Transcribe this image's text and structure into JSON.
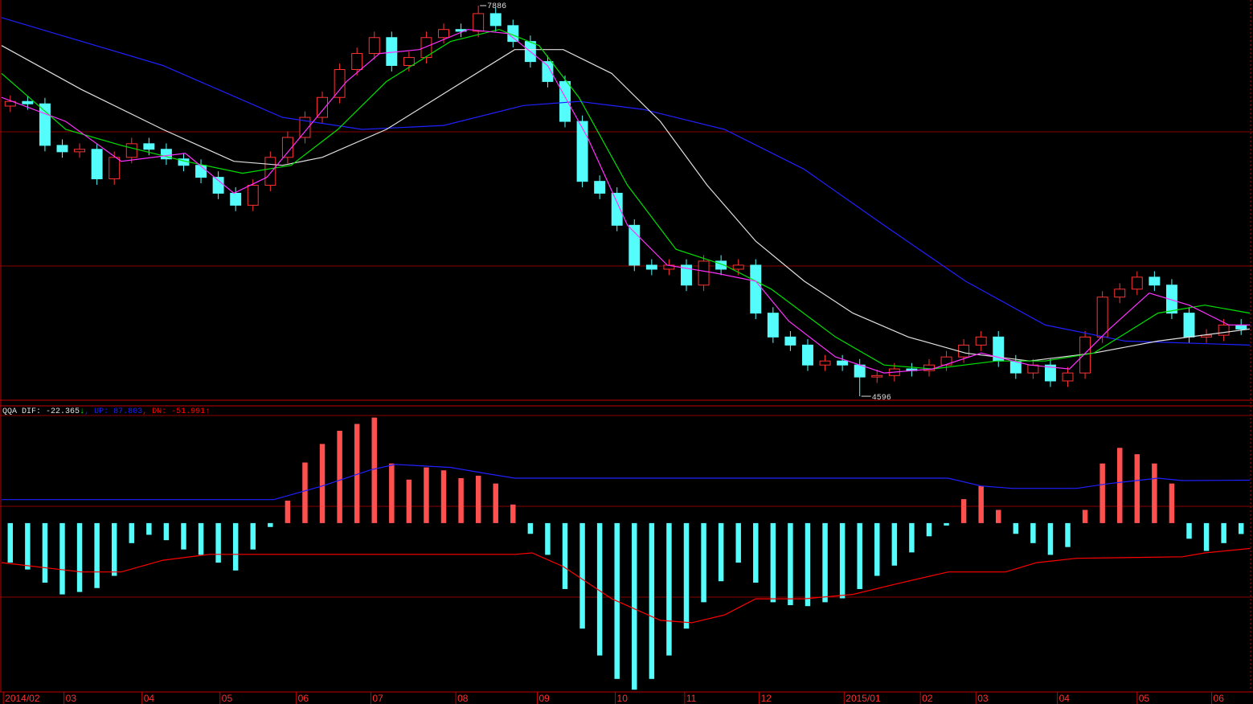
{
  "chart_data": [
    {
      "type": "candlestick",
      "xlim": [
        0,
        72
      ],
      "ylim": [
        4576,
        7920
      ],
      "up_color": "#ff3232",
      "down_color": "#54fcfc",
      "open": [
        7040,
        7079,
        7059,
        6709,
        6655,
        6676,
        6427,
        6608,
        6723,
        6676,
        6595,
        6541,
        6440,
        6306,
        6205,
        6373,
        6608,
        6776,
        6945,
        7113,
        7348,
        7483,
        7617,
        7382,
        7449,
        7617,
        7685,
        7670,
        7819,
        7718,
        7584,
        7415,
        7247,
        6911,
        6406,
        6306,
        6036,
        5700,
        5666,
        5700,
        5532,
        5734,
        5666,
        5700,
        5296,
        5095,
        5027,
        4859,
        4893,
        4859,
        4758,
        4770,
        4826,
        4812,
        4859,
        4927,
        5027,
        5095,
        4893,
        4792,
        4859,
        4725,
        4792,
        5095,
        5431,
        5498,
        5599,
        5532,
        5296,
        5095,
        5110,
        5196
      ],
      "high": [
        7129,
        7129,
        7109,
        6759,
        6726,
        6726,
        6658,
        6773,
        6773,
        6726,
        6645,
        6591,
        6490,
        6356,
        6423,
        6658,
        6826,
        6995,
        7163,
        7398,
        7533,
        7667,
        7667,
        7499,
        7667,
        7735,
        7735,
        7886,
        7869,
        7768,
        7634,
        7465,
        7297,
        6961,
        6456,
        6356,
        6086,
        5750,
        5750,
        5750,
        5784,
        5784,
        5750,
        5750,
        5346,
        5145,
        5077,
        4943,
        4943,
        4909,
        4820,
        4876,
        4876,
        4909,
        4977,
        5077,
        5145,
        5145,
        4943,
        4909,
        4909,
        4842,
        5145,
        5481,
        5548,
        5649,
        5649,
        5582,
        5346,
        5160,
        5246,
        5246
      ],
      "low": [
        6990,
        7009,
        6659,
        6605,
        6605,
        6377,
        6377,
        6558,
        6626,
        6545,
        6491,
        6390,
        6256,
        6155,
        6155,
        6323,
        6558,
        6726,
        6895,
        7063,
        7298,
        7433,
        7332,
        7332,
        7399,
        7567,
        7620,
        7620,
        7668,
        7534,
        7365,
        7197,
        6861,
        6356,
        6256,
        5986,
        5650,
        5616,
        5616,
        5482,
        5482,
        5616,
        5616,
        5246,
        5045,
        4977,
        4809,
        4809,
        4809,
        4596,
        4708,
        4720,
        4762,
        4762,
        4809,
        4877,
        4977,
        4843,
        4742,
        4742,
        4675,
        4675,
        4742,
        5045,
        5381,
        5448,
        5482,
        5246,
        5045,
        5045,
        5060,
        5112
      ],
      "close": [
        7079,
        7059,
        6709,
        6655,
        6676,
        6427,
        6608,
        6723,
        6676,
        6595,
        6541,
        6440,
        6306,
        6205,
        6373,
        6608,
        6776,
        6945,
        7113,
        7348,
        7483,
        7617,
        7382,
        7449,
        7617,
        7685,
        7670,
        7819,
        7718,
        7584,
        7415,
        7247,
        6911,
        6406,
        6306,
        6036,
        5700,
        5666,
        5700,
        5532,
        5734,
        5666,
        5700,
        5296,
        5095,
        5027,
        4859,
        4893,
        4859,
        4758,
        4770,
        4826,
        4812,
        4859,
        4927,
        5027,
        5095,
        4893,
        4792,
        4859,
        4725,
        4792,
        5095,
        5431,
        5498,
        5599,
        5532,
        5296,
        5095,
        5110,
        5196,
        5162
      ],
      "series": [
        {
          "color": "#2020ff",
          "x": [
            0,
            9.3,
            16.2,
            20.8,
            25.5,
            30.1,
            33.3,
            37,
            41.7,
            46.3,
            50.9,
            55.6,
            60.2,
            64.8,
            72
          ],
          "values": [
            7785,
            7382,
            6945,
            6844,
            6877,
            7045,
            7079,
            7012,
            6844,
            6507,
            6036,
            5565,
            5196,
            5061,
            5027
          ]
        },
        {
          "color": "#e0e0e0",
          "x": [
            0,
            4.6,
            9.3,
            13.4,
            16.2,
            18.5,
            22.2,
            25.9,
            29.6,
            32.4,
            35.2,
            38,
            40.7,
            43.5,
            46.3,
            49.1,
            52.3,
            55.6,
            59.3,
            63,
            66.7,
            72
          ],
          "values": [
            7550,
            7180,
            6844,
            6575,
            6541,
            6608,
            6844,
            7180,
            7516,
            7516,
            7315,
            6911,
            6373,
            5902,
            5565,
            5296,
            5095,
            4960,
            4893,
            4960,
            5061,
            5162
          ]
        },
        {
          "color": "#00e000",
          "x": [
            0,
            3.7,
            6.9,
            10.6,
            13.9,
            16.7,
            19.4,
            22.2,
            25.9,
            28.7,
            31,
            33.3,
            36.1,
            38.9,
            41.7,
            44.4,
            48.1,
            50.9,
            53.7,
            57.4,
            60.2,
            63,
            66.7,
            69.4,
            72
          ],
          "values": [
            7315,
            6844,
            6709,
            6575,
            6474,
            6541,
            6844,
            7247,
            7584,
            7685,
            7550,
            7113,
            6373,
            5834,
            5700,
            5498,
            5095,
            4859,
            4826,
            4893,
            4893,
            4960,
            5296,
            5363,
            5296
          ]
        },
        {
          "color": "#ff30ff",
          "x": [
            0,
            3.7,
            6.9,
            10.6,
            13.4,
            15.3,
            17.6,
            19.9,
            21.8,
            24.1,
            26.9,
            29.2,
            31.5,
            33.8,
            36.1,
            38.4,
            41.2,
            43.5,
            45.4,
            48.1,
            50.9,
            53.7,
            56.5,
            59.3,
            61.6,
            63.9,
            66.2,
            68.5,
            70.8,
            72
          ],
          "values": [
            7113,
            6911,
            6575,
            6642,
            6306,
            6440,
            6844,
            7247,
            7483,
            7516,
            7685,
            7651,
            7382,
            6776,
            6036,
            5700,
            5633,
            5565,
            5229,
            4927,
            4792,
            4826,
            4960,
            4859,
            4826,
            5162,
            5465,
            5363,
            5196,
            5196
          ]
        }
      ]
    },
    {
      "type": "bar",
      "title": "QQA",
      "separator": ",",
      "xlim": [
        0,
        72
      ],
      "ylim": [
        -344,
        240
      ],
      "xticks": [
        {
          "value": 0.1,
          "label": "2014/02"
        },
        {
          "value": 3.6,
          "label": "03"
        },
        {
          "value": 8.1,
          "label": "04"
        },
        {
          "value": 12.6,
          "label": "05"
        },
        {
          "value": 17.0,
          "label": "06"
        },
        {
          "value": 21.3,
          "label": "07"
        },
        {
          "value": 26.2,
          "label": "08"
        },
        {
          "value": 30.9,
          "label": "09"
        },
        {
          "value": 35.4,
          "label": "10"
        },
        {
          "value": 39.4,
          "label": "11"
        },
        {
          "value": 43.7,
          "label": "12"
        },
        {
          "value": 48.6,
          "label": "2015/01"
        },
        {
          "value": 53.0,
          "label": "02"
        },
        {
          "value": 56.2,
          "label": "03"
        },
        {
          "value": 60.9,
          "label": "04"
        },
        {
          "value": 65.5,
          "label": "05"
        },
        {
          "value": 69.8,
          "label": "06"
        }
      ],
      "series": [
        {
          "name": "DIF:",
          "arrow": "↓",
          "arrow_color": "#00ff00",
          "legend_color": "#e0e0e0",
          "color": "#54fcfc",
          "up_color": "#ff5050",
          "values": [
            -81,
            -95,
            -122,
            -146,
            -141,
            -133,
            -108,
            -41,
            -24,
            -35,
            -54,
            -65,
            -81,
            -97,
            -54,
            -8,
            46,
            124,
            162,
            189,
            203,
            216,
            122,
            89,
            114,
            108,
            92,
            97,
            81,
            38,
            -22,
            -65,
            -135,
            -216,
            -271,
            -319,
            -341,
            -319,
            -271,
            -216,
            -162,
            -119,
            -81,
            -122,
            -162,
            -168,
            -170,
            -162,
            -154,
            -135,
            -108,
            -87,
            -60,
            -27,
            -5,
            49,
            76,
            27,
            -22,
            -41,
            -65,
            -49,
            27,
            122,
            154,
            141,
            122,
            81,
            -32,
            -57,
            -41,
            -22.365
          ]
        },
        {
          "name": "UP:",
          "color": "#2020ff",
          "x": [
            0,
            15.7,
            18.5,
            21.3,
            22.7,
            25.9,
            28.2,
            29.6,
            54.6,
            56.5,
            58.3,
            62,
            63.9,
            66.7,
            68.1,
            72
          ],
          "values": [
            48,
            48,
            76,
            109,
            120,
            114,
            100,
            92,
            92,
            76,
            71,
            71,
            81,
            92,
            87,
            87.803
          ]
        },
        {
          "name": "DN:",
          "arrow": "↑",
          "arrow_color": "#ff0000",
          "color": "#ff0000",
          "x": [
            0,
            4.6,
            6.9,
            9.3,
            12,
            15.3,
            29.6,
            30.6,
            32.4,
            35.2,
            38,
            39.8,
            41.7,
            43.5,
            46.3,
            49.1,
            51.9,
            54.6,
            57.9,
            59.7,
            62,
            68.1,
            69.4,
            72
          ],
          "values": [
            -81,
            -100,
            -100,
            -76,
            -64,
            -64,
            -64,
            -61,
            -89,
            -155,
            -199,
            -204,
            -188,
            -155,
            -155,
            -146,
            -122,
            -100,
            -100,
            -81,
            -72,
            -69,
            -61,
            -51.991
          ]
        }
      ]
    }
  ]
}
